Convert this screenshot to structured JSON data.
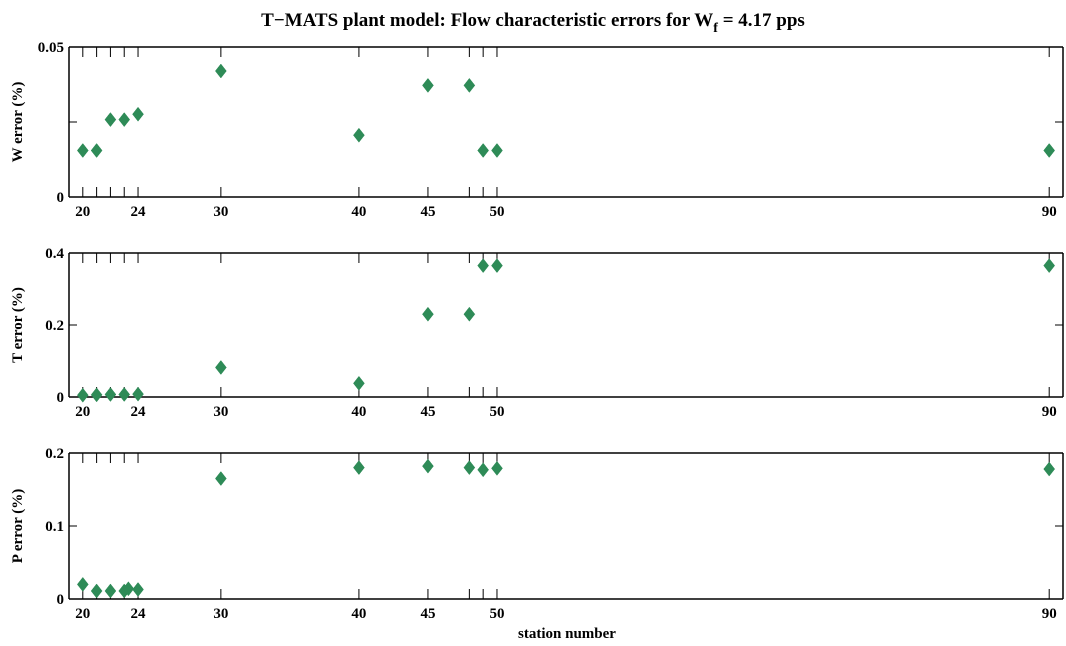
{
  "chart_data": {
    "type": "scatter",
    "title_main": "T−MATS plant model: Flow characteristic errors for W",
    "title_sub": "f",
    "title_rest": " = 4.17 pps",
    "xlabel": "station number",
    "x_tick_labels": [
      "20",
      "24",
      "30",
      "40",
      "45",
      "50",
      "90"
    ],
    "x_ticks": [
      20,
      21,
      22,
      23,
      24,
      30,
      40,
      45,
      48,
      49,
      50,
      90
    ],
    "xlim": [
      19,
      91
    ],
    "marker": "diamond",
    "marker_color": "#2e8b57",
    "subplots": [
      {
        "ylabel": "W error (%)",
        "ylim": [
          0,
          0.05
        ],
        "y_ticks": [
          0,
          0.025,
          0.05
        ],
        "y_tick_labels": [
          "0",
          "",
          "0.05"
        ],
        "points": [
          {
            "x": 20,
            "y": 0.0155
          },
          {
            "x": 21,
            "y": 0.0155
          },
          {
            "x": 22,
            "y": 0.0258
          },
          {
            "x": 23,
            "y": 0.0258
          },
          {
            "x": 24,
            "y": 0.0276
          },
          {
            "x": 30,
            "y": 0.042
          },
          {
            "x": 40,
            "y": 0.0206
          },
          {
            "x": 45,
            "y": 0.0372
          },
          {
            "x": 48,
            "y": 0.0372
          },
          {
            "x": 49,
            "y": 0.0155
          },
          {
            "x": 50,
            "y": 0.0155
          },
          {
            "x": 90,
            "y": 0.0155
          }
        ]
      },
      {
        "ylabel": "T error (%)",
        "ylim": [
          0,
          0.4
        ],
        "y_ticks": [
          0,
          0.2,
          0.4
        ],
        "y_tick_labels": [
          "0",
          "0.2",
          "0.4"
        ],
        "points": [
          {
            "x": 20,
            "y": 0.005
          },
          {
            "x": 21,
            "y": 0.006
          },
          {
            "x": 22,
            "y": 0.007
          },
          {
            "x": 23,
            "y": 0.007
          },
          {
            "x": 24,
            "y": 0.008
          },
          {
            "x": 30,
            "y": 0.082
          },
          {
            "x": 40,
            "y": 0.038
          },
          {
            "x": 45,
            "y": 0.23
          },
          {
            "x": 48,
            "y": 0.23
          },
          {
            "x": 49,
            "y": 0.365
          },
          {
            "x": 50,
            "y": 0.365
          },
          {
            "x": 90,
            "y": 0.365
          }
        ]
      },
      {
        "ylabel": "P error (%)",
        "ylim": [
          0,
          0.2
        ],
        "y_ticks": [
          0,
          0.1,
          0.2
        ],
        "y_tick_labels": [
          "0",
          "0.1",
          "0.2"
        ],
        "points": [
          {
            "x": 20,
            "y": 0.02
          },
          {
            "x": 21,
            "y": 0.011
          },
          {
            "x": 22,
            "y": 0.011
          },
          {
            "x": 23,
            "y": 0.011
          },
          {
            "x": 23.3,
            "y": 0.014
          },
          {
            "x": 24,
            "y": 0.013
          },
          {
            "x": 30,
            "y": 0.165
          },
          {
            "x": 40,
            "y": 0.18
          },
          {
            "x": 45,
            "y": 0.182
          },
          {
            "x": 48,
            "y": 0.18
          },
          {
            "x": 49,
            "y": 0.177
          },
          {
            "x": 50,
            "y": 0.179
          },
          {
            "x": 90,
            "y": 0.178
          }
        ]
      }
    ]
  }
}
